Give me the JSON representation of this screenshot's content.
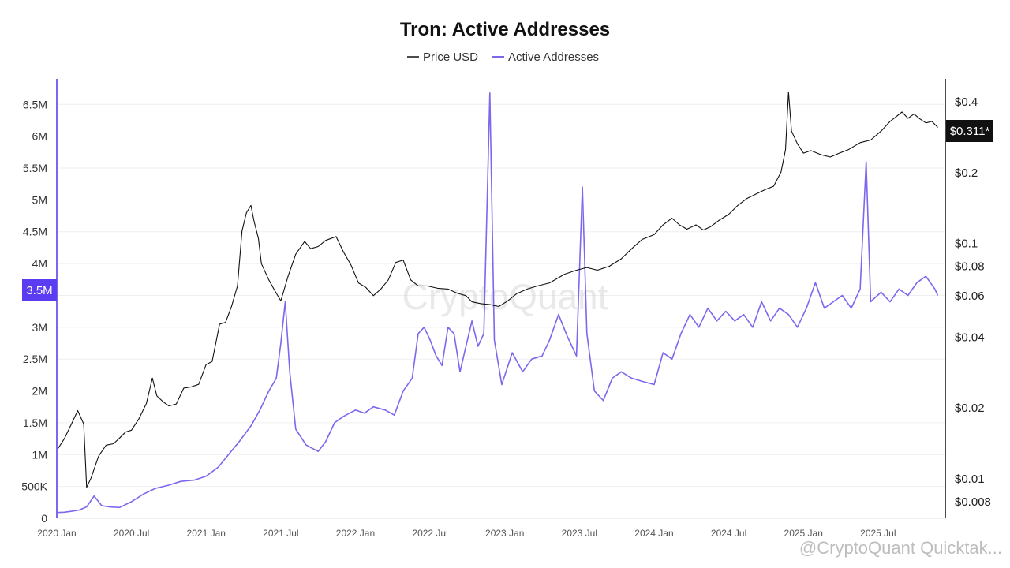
{
  "chart_data": {
    "type": "line",
    "title": "Tron: Active Addresses",
    "legend": {
      "placement": "top-center",
      "items": [
        "Price USD",
        "Active Addresses"
      ]
    },
    "colors": {
      "price": "#111111",
      "active": "#7b68ee",
      "badge_left": "#5b3cf0",
      "badge_right": "#111111"
    },
    "x_axis": {
      "ticks": [
        "2020 Jan",
        "2020 Jul",
        "2021 Jan",
        "2021 Jul",
        "2022 Jan",
        "2022 Jul",
        "2023 Jan",
        "2023 Jul",
        "2024 Jan",
        "2024 Jul",
        "2025 Jan",
        "2025 Jul"
      ],
      "range": [
        2020.0,
        2025.95
      ]
    },
    "y_left": {
      "label": "Active Addresses",
      "range": [
        0,
        6900000
      ],
      "ticks": [
        {
          "value": 0,
          "label": "0"
        },
        {
          "value": 500000,
          "label": "500K"
        },
        {
          "value": 1000000,
          "label": "1M"
        },
        {
          "value": 1500000,
          "label": "1.5M"
        },
        {
          "value": 2000000,
          "label": "2M"
        },
        {
          "value": 2500000,
          "label": "2.5M"
        },
        {
          "value": 3000000,
          "label": "3M"
        },
        {
          "value": 3500000,
          "label": "3.5M"
        },
        {
          "value": 4000000,
          "label": "4M"
        },
        {
          "value": 4500000,
          "label": "4.5M"
        },
        {
          "value": 5000000,
          "label": "5M"
        },
        {
          "value": 5500000,
          "label": "5.5M"
        },
        {
          "value": 6000000,
          "label": "6M"
        },
        {
          "value": 6500000,
          "label": "6.5M"
        }
      ],
      "current_badge": "3.5M"
    },
    "y_right": {
      "label": "Price USD",
      "scale": "log",
      "range": [
        0.0068,
        0.5
      ],
      "ticks": [
        {
          "value": 0.4,
          "label": "$0.4"
        },
        {
          "value": 0.2,
          "label": "$0.2"
        },
        {
          "value": 0.1,
          "label": "$0.1"
        },
        {
          "value": 0.08,
          "label": "$0.08"
        },
        {
          "value": 0.06,
          "label": "$0.06"
        },
        {
          "value": 0.04,
          "label": "$0.04"
        },
        {
          "value": 0.02,
          "label": "$0.02"
        },
        {
          "value": 0.01,
          "label": "$0.01"
        },
        {
          "value": 0.008,
          "label": "$0.008"
        }
      ],
      "current_badge": "$0.311*"
    },
    "series": [
      {
        "name": "Price USD",
        "axis": "right",
        "points": [
          [
            2020.0,
            0.0132
          ],
          [
            2020.05,
            0.0148
          ],
          [
            2020.1,
            0.0172
          ],
          [
            2020.14,
            0.0195
          ],
          [
            2020.18,
            0.0171
          ],
          [
            2020.2,
            0.0092
          ],
          [
            2020.23,
            0.0101
          ],
          [
            2020.28,
            0.0125
          ],
          [
            2020.33,
            0.0139
          ],
          [
            2020.38,
            0.0141
          ],
          [
            2020.42,
            0.0149
          ],
          [
            2020.46,
            0.0158
          ],
          [
            2020.5,
            0.0161
          ],
          [
            2020.55,
            0.018
          ],
          [
            2020.6,
            0.0209
          ],
          [
            2020.64,
            0.0268
          ],
          [
            2020.67,
            0.0225
          ],
          [
            2020.71,
            0.0213
          ],
          [
            2020.75,
            0.0204
          ],
          [
            2020.8,
            0.0208
          ],
          [
            2020.85,
            0.0243
          ],
          [
            2020.9,
            0.0246
          ],
          [
            2020.95,
            0.0252
          ],
          [
            2021.0,
            0.0306
          ],
          [
            2021.04,
            0.0315
          ],
          [
            2021.09,
            0.0454
          ],
          [
            2021.13,
            0.0462
          ],
          [
            2021.17,
            0.054
          ],
          [
            2021.21,
            0.0662
          ],
          [
            2021.24,
            0.113
          ],
          [
            2021.27,
            0.135
          ],
          [
            2021.3,
            0.145
          ],
          [
            2021.32,
            0.125
          ],
          [
            2021.35,
            0.105
          ],
          [
            2021.37,
            0.082
          ],
          [
            2021.42,
            0.07
          ],
          [
            2021.46,
            0.063
          ],
          [
            2021.5,
            0.057
          ],
          [
            2021.55,
            0.073
          ],
          [
            2021.6,
            0.09
          ],
          [
            2021.66,
            0.102
          ],
          [
            2021.7,
            0.095
          ],
          [
            2021.75,
            0.097
          ],
          [
            2021.8,
            0.103
          ],
          [
            2021.87,
            0.107
          ],
          [
            2021.92,
            0.092
          ],
          [
            2021.97,
            0.081
          ],
          [
            2022.02,
            0.068
          ],
          [
            2022.07,
            0.065
          ],
          [
            2022.12,
            0.06
          ],
          [
            2022.17,
            0.064
          ],
          [
            2022.22,
            0.07
          ],
          [
            2022.27,
            0.083
          ],
          [
            2022.32,
            0.085
          ],
          [
            2022.37,
            0.07
          ],
          [
            2022.42,
            0.066
          ],
          [
            2022.48,
            0.066
          ],
          [
            2022.55,
            0.0645
          ],
          [
            2022.62,
            0.064
          ],
          [
            2022.68,
            0.0615
          ],
          [
            2022.74,
            0.06
          ],
          [
            2022.78,
            0.0565
          ],
          [
            2022.84,
            0.0555
          ],
          [
            2022.9,
            0.055
          ],
          [
            2022.96,
            0.054
          ],
          [
            2023.02,
            0.057
          ],
          [
            2023.08,
            0.0612
          ],
          [
            2023.15,
            0.064
          ],
          [
            2023.22,
            0.066
          ],
          [
            2023.3,
            0.068
          ],
          [
            2023.4,
            0.074
          ],
          [
            2023.48,
            0.077
          ],
          [
            2023.55,
            0.079
          ],
          [
            2023.62,
            0.077
          ],
          [
            2023.7,
            0.08
          ],
          [
            2023.78,
            0.086
          ],
          [
            2023.85,
            0.095
          ],
          [
            2023.92,
            0.104
          ],
          [
            2024.0,
            0.109
          ],
          [
            2024.06,
            0.12
          ],
          [
            2024.12,
            0.128
          ],
          [
            2024.17,
            0.12
          ],
          [
            2024.22,
            0.115
          ],
          [
            2024.28,
            0.12
          ],
          [
            2024.33,
            0.114
          ],
          [
            2024.38,
            0.118
          ],
          [
            2024.44,
            0.126
          ],
          [
            2024.5,
            0.133
          ],
          [
            2024.56,
            0.145
          ],
          [
            2024.62,
            0.155
          ],
          [
            2024.68,
            0.162
          ],
          [
            2024.75,
            0.17
          ],
          [
            2024.8,
            0.175
          ],
          [
            2024.85,
            0.201
          ],
          [
            2024.88,
            0.25
          ],
          [
            2024.9,
            0.44
          ],
          [
            2024.92,
            0.3
          ],
          [
            2024.96,
            0.265
          ],
          [
            2025.0,
            0.242
          ],
          [
            2025.05,
            0.248
          ],
          [
            2025.12,
            0.238
          ],
          [
            2025.18,
            0.233
          ],
          [
            2025.24,
            0.242
          ],
          [
            2025.3,
            0.25
          ],
          [
            2025.38,
            0.268
          ],
          [
            2025.45,
            0.275
          ],
          [
            2025.52,
            0.3
          ],
          [
            2025.58,
            0.33
          ],
          [
            2025.62,
            0.345
          ],
          [
            2025.66,
            0.362
          ],
          [
            2025.7,
            0.34
          ],
          [
            2025.74,
            0.355
          ],
          [
            2025.78,
            0.338
          ],
          [
            2025.82,
            0.325
          ],
          [
            2025.86,
            0.33
          ],
          [
            2025.9,
            0.311
          ]
        ]
      },
      {
        "name": "Active Addresses",
        "axis": "left",
        "points": [
          [
            2020.0,
            90000
          ],
          [
            2020.05,
            95000
          ],
          [
            2020.1,
            110000
          ],
          [
            2020.15,
            130000
          ],
          [
            2020.2,
            180000
          ],
          [
            2020.25,
            350000
          ],
          [
            2020.3,
            200000
          ],
          [
            2020.35,
            180000
          ],
          [
            2020.42,
            170000
          ],
          [
            2020.5,
            260000
          ],
          [
            2020.58,
            380000
          ],
          [
            2020.66,
            470000
          ],
          [
            2020.75,
            520000
          ],
          [
            2020.83,
            580000
          ],
          [
            2020.92,
            600000
          ],
          [
            2021.0,
            660000
          ],
          [
            2021.08,
            800000
          ],
          [
            2021.15,
            1000000
          ],
          [
            2021.22,
            1200000
          ],
          [
            2021.3,
            1450000
          ],
          [
            2021.36,
            1700000
          ],
          [
            2021.42,
            2000000
          ],
          [
            2021.47,
            2200000
          ],
          [
            2021.5,
            2750000
          ],
          [
            2021.53,
            3400000
          ],
          [
            2021.56,
            2300000
          ],
          [
            2021.6,
            1400000
          ],
          [
            2021.67,
            1150000
          ],
          [
            2021.75,
            1050000
          ],
          [
            2021.8,
            1200000
          ],
          [
            2021.86,
            1500000
          ],
          [
            2021.92,
            1600000
          ],
          [
            2022.0,
            1700000
          ],
          [
            2022.06,
            1650000
          ],
          [
            2022.12,
            1750000
          ],
          [
            2022.2,
            1700000
          ],
          [
            2022.26,
            1620000
          ],
          [
            2022.32,
            2000000
          ],
          [
            2022.38,
            2200000
          ],
          [
            2022.42,
            2900000
          ],
          [
            2022.46,
            3000000
          ],
          [
            2022.5,
            2800000
          ],
          [
            2022.54,
            2550000
          ],
          [
            2022.58,
            2400000
          ],
          [
            2022.62,
            3000000
          ],
          [
            2022.66,
            2900000
          ],
          [
            2022.7,
            2300000
          ],
          [
            2022.74,
            2700000
          ],
          [
            2022.78,
            3100000
          ],
          [
            2022.82,
            2700000
          ],
          [
            2022.86,
            2900000
          ],
          [
            2022.9,
            6680000
          ],
          [
            2022.93,
            2800000
          ],
          [
            2022.98,
            2100000
          ],
          [
            2023.05,
            2600000
          ],
          [
            2023.12,
            2300000
          ],
          [
            2023.18,
            2500000
          ],
          [
            2023.25,
            2550000
          ],
          [
            2023.3,
            2800000
          ],
          [
            2023.36,
            3200000
          ],
          [
            2023.42,
            2850000
          ],
          [
            2023.48,
            2550000
          ],
          [
            2023.52,
            5200000
          ],
          [
            2023.55,
            2900000
          ],
          [
            2023.6,
            2000000
          ],
          [
            2023.66,
            1850000
          ],
          [
            2023.72,
            2200000
          ],
          [
            2023.78,
            2300000
          ],
          [
            2023.85,
            2200000
          ],
          [
            2023.92,
            2150000
          ],
          [
            2024.0,
            2100000
          ],
          [
            2024.06,
            2600000
          ],
          [
            2024.12,
            2500000
          ],
          [
            2024.18,
            2900000
          ],
          [
            2024.24,
            3200000
          ],
          [
            2024.3,
            3000000
          ],
          [
            2024.36,
            3300000
          ],
          [
            2024.42,
            3100000
          ],
          [
            2024.48,
            3250000
          ],
          [
            2024.54,
            3100000
          ],
          [
            2024.6,
            3200000
          ],
          [
            2024.66,
            3000000
          ],
          [
            2024.72,
            3400000
          ],
          [
            2024.78,
            3100000
          ],
          [
            2024.84,
            3300000
          ],
          [
            2024.9,
            3200000
          ],
          [
            2024.96,
            3000000
          ],
          [
            2025.02,
            3300000
          ],
          [
            2025.08,
            3700000
          ],
          [
            2025.14,
            3300000
          ],
          [
            2025.2,
            3400000
          ],
          [
            2025.26,
            3500000
          ],
          [
            2025.32,
            3300000
          ],
          [
            2025.38,
            3600000
          ],
          [
            2025.42,
            5600000
          ],
          [
            2025.45,
            3400000
          ],
          [
            2025.52,
            3550000
          ],
          [
            2025.58,
            3400000
          ],
          [
            2025.64,
            3600000
          ],
          [
            2025.7,
            3500000
          ],
          [
            2025.76,
            3700000
          ],
          [
            2025.82,
            3800000
          ],
          [
            2025.88,
            3600000
          ],
          [
            2025.9,
            3500000
          ]
        ]
      }
    ]
  },
  "watermark": "CryptoQuant",
  "credit": "@CryptoQuant Quicktak..."
}
